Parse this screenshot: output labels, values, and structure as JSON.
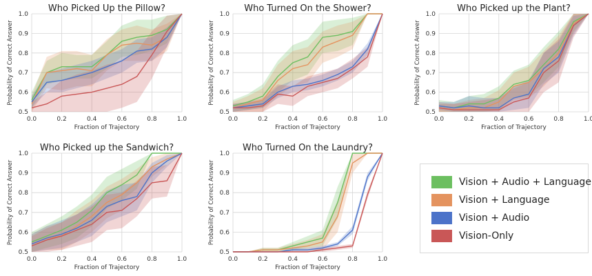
{
  "colors": {
    "Vision + Audio + Language": "#6cbf60",
    "Vision + Language": "#e4935f",
    "Vision + Audio": "#4c73c9",
    "Vision-Only": "#c95757"
  },
  "legend": {
    "items": [
      "Vision + Audio + Language",
      "Vision + Language",
      "Vision + Audio",
      "Vision-Only"
    ]
  },
  "chart_data": [
    {
      "type": "line",
      "title": "Who Picked Up the Pillow?",
      "xlabel": "Fraction of Trajectory",
      "ylabel": "Probability of Correct Answer",
      "xlim": [
        0,
        1
      ],
      "ylim": [
        0.5,
        1.0
      ],
      "xticks": [
        "0.0",
        "0.2",
        "0.4",
        "0.6",
        "0.8",
        "1.0"
      ],
      "yticks": [
        "0.5",
        "0.6",
        "0.7",
        "0.8",
        "0.9",
        "1.0"
      ],
      "x": [
        0,
        0.1,
        0.2,
        0.3,
        0.4,
        0.5,
        0.6,
        0.7,
        0.8,
        0.9,
        1.0
      ],
      "series": [
        {
          "name": "Vision + Audio + Language",
          "values": [
            0.56,
            0.7,
            0.73,
            0.73,
            0.73,
            0.79,
            0.86,
            0.88,
            0.89,
            0.92,
            1.0
          ],
          "band": [
            0.04,
            0.06,
            0.07,
            0.06,
            0.06,
            0.07,
            0.08,
            0.09,
            0.08,
            0.07,
            0.0
          ]
        },
        {
          "name": "Vision + Language",
          "values": [
            0.54,
            0.7,
            0.71,
            0.72,
            0.71,
            0.79,
            0.84,
            0.85,
            0.84,
            0.88,
            1.0
          ],
          "band": [
            0.04,
            0.08,
            0.1,
            0.09,
            0.08,
            0.08,
            0.08,
            0.09,
            0.08,
            0.07,
            0.0
          ]
        },
        {
          "name": "Vision + Audio",
          "values": [
            0.55,
            0.65,
            0.66,
            0.68,
            0.7,
            0.73,
            0.76,
            0.81,
            0.82,
            0.88,
            1.0
          ],
          "band": [
            0.03,
            0.05,
            0.06,
            0.06,
            0.06,
            0.06,
            0.06,
            0.06,
            0.06,
            0.05,
            0.0
          ]
        },
        {
          "name": "Vision-Only",
          "values": [
            0.52,
            0.54,
            0.58,
            0.59,
            0.6,
            0.62,
            0.64,
            0.68,
            0.79,
            0.91,
            1.0
          ],
          "band": [
            0.03,
            0.06,
            0.08,
            0.1,
            0.11,
            0.12,
            0.12,
            0.13,
            0.12,
            0.08,
            0.0
          ]
        }
      ]
    },
    {
      "type": "line",
      "title": "Who Turned On the Shower?",
      "xlabel": "Fraction of Trajectory",
      "ylabel": "Probability of Correct Answer",
      "xlim": [
        0,
        1
      ],
      "ylim": [
        0.5,
        1.0
      ],
      "xticks": [
        "0.0",
        "0.2",
        "0.4",
        "0.6",
        "0.8",
        "1.0"
      ],
      "yticks": [
        "0.5",
        "0.6",
        "0.7",
        "0.8",
        "0.9",
        "1.0"
      ],
      "x": [
        0,
        0.1,
        0.2,
        0.3,
        0.4,
        0.5,
        0.6,
        0.7,
        0.8,
        0.9,
        1.0
      ],
      "series": [
        {
          "name": "Vision + Audio + Language",
          "values": [
            0.53,
            0.55,
            0.58,
            0.68,
            0.75,
            0.78,
            0.88,
            0.89,
            0.91,
            1.0,
            1.0
          ],
          "band": [
            0.03,
            0.04,
            0.06,
            0.08,
            0.09,
            0.09,
            0.08,
            0.08,
            0.07,
            0.0,
            0.0
          ]
        },
        {
          "name": "Vision + Language",
          "values": [
            0.52,
            0.54,
            0.56,
            0.66,
            0.72,
            0.74,
            0.83,
            0.86,
            0.89,
            1.0,
            1.0
          ],
          "band": [
            0.03,
            0.04,
            0.06,
            0.08,
            0.09,
            0.09,
            0.08,
            0.08,
            0.07,
            0.0,
            0.0
          ]
        },
        {
          "name": "Vision + Audio",
          "values": [
            0.52,
            0.53,
            0.54,
            0.6,
            0.63,
            0.64,
            0.66,
            0.69,
            0.73,
            0.82,
            1.0
          ],
          "band": [
            0.02,
            0.02,
            0.02,
            0.03,
            0.03,
            0.03,
            0.03,
            0.03,
            0.03,
            0.03,
            0.0
          ]
        },
        {
          "name": "Vision-Only",
          "values": [
            0.52,
            0.52,
            0.53,
            0.59,
            0.58,
            0.63,
            0.65,
            0.67,
            0.72,
            0.78,
            1.0
          ],
          "band": [
            0.02,
            0.03,
            0.04,
            0.05,
            0.05,
            0.05,
            0.05,
            0.05,
            0.05,
            0.05,
            0.0
          ]
        }
      ]
    },
    {
      "type": "line",
      "title": "Who Picked up the Plant?",
      "xlabel": "Fraction of Trajectory",
      "ylabel": "Probability of Correct Answer",
      "xlim": [
        0,
        1
      ],
      "ylim": [
        0.5,
        1.0
      ],
      "xticks": [
        "0.0",
        "0.2",
        "0.4",
        "0.6",
        "0.8",
        "1.0"
      ],
      "yticks": [
        "0.5",
        "0.6",
        "0.7",
        "0.8",
        "0.9",
        "1.0"
      ],
      "x": [
        0,
        0.1,
        0.2,
        0.3,
        0.4,
        0.5,
        0.6,
        0.7,
        0.8,
        0.9,
        1.0
      ],
      "series": [
        {
          "name": "Vision + Audio + Language",
          "values": [
            0.53,
            0.52,
            0.54,
            0.54,
            0.57,
            0.64,
            0.66,
            0.74,
            0.82,
            0.96,
            1.0
          ],
          "band": [
            0.03,
            0.03,
            0.04,
            0.05,
            0.06,
            0.07,
            0.08,
            0.09,
            0.09,
            0.05,
            0.0
          ]
        },
        {
          "name": "Vision + Language",
          "values": [
            0.52,
            0.51,
            0.52,
            0.52,
            0.55,
            0.63,
            0.65,
            0.72,
            0.8,
            0.95,
            1.0
          ],
          "band": [
            0.03,
            0.03,
            0.04,
            0.05,
            0.06,
            0.07,
            0.08,
            0.09,
            0.09,
            0.05,
            0.0
          ]
        },
        {
          "name": "Vision + Audio",
          "values": [
            0.53,
            0.52,
            0.53,
            0.52,
            0.52,
            0.57,
            0.59,
            0.72,
            0.78,
            0.94,
            1.0
          ],
          "band": [
            0.02,
            0.03,
            0.05,
            0.05,
            0.05,
            0.06,
            0.07,
            0.08,
            0.08,
            0.05,
            0.0
          ]
        },
        {
          "name": "Vision-Only",
          "values": [
            0.52,
            0.51,
            0.51,
            0.51,
            0.51,
            0.55,
            0.57,
            0.7,
            0.76,
            0.94,
            1.0
          ],
          "band": [
            0.02,
            0.03,
            0.04,
            0.05,
            0.06,
            0.07,
            0.08,
            0.1,
            0.11,
            0.06,
            0.0
          ]
        }
      ]
    },
    {
      "type": "line",
      "title": "Who Picked up the Sandwich?",
      "xlabel": "Fraction of Trajectory",
      "ylabel": "Probability of Correct Answer",
      "xlim": [
        0,
        1
      ],
      "ylim": [
        0.5,
        1.0
      ],
      "xticks": [
        "0.0",
        "0.2",
        "0.4",
        "0.6",
        "0.8",
        "1.0"
      ],
      "yticks": [
        "0.5",
        "0.6",
        "0.7",
        "0.8",
        "0.9",
        "1.0"
      ],
      "x": [
        0,
        0.1,
        0.2,
        0.3,
        0.4,
        0.5,
        0.6,
        0.7,
        0.8,
        0.9,
        1.0
      ],
      "series": [
        {
          "name": "Vision + Audio + Language",
          "values": [
            0.55,
            0.58,
            0.61,
            0.65,
            0.71,
            0.8,
            0.84,
            0.89,
            1.0,
            1.0,
            1.0
          ],
          "band": [
            0.05,
            0.06,
            0.07,
            0.08,
            0.08,
            0.08,
            0.08,
            0.07,
            0.0,
            0.0,
            0.0
          ]
        },
        {
          "name": "Vision + Language",
          "values": [
            0.54,
            0.57,
            0.58,
            0.63,
            0.68,
            0.75,
            0.79,
            0.85,
            0.93,
            0.97,
            1.0
          ],
          "band": [
            0.05,
            0.06,
            0.07,
            0.08,
            0.08,
            0.08,
            0.08,
            0.07,
            0.05,
            0.03,
            0.0
          ]
        },
        {
          "name": "Vision + Audio",
          "values": [
            0.54,
            0.57,
            0.59,
            0.62,
            0.66,
            0.73,
            0.76,
            0.78,
            0.9,
            0.96,
            1.0
          ],
          "band": [
            0.05,
            0.06,
            0.07,
            0.07,
            0.08,
            0.08,
            0.08,
            0.07,
            0.05,
            0.03,
            0.0
          ]
        },
        {
          "name": "Vision-Only",
          "values": [
            0.53,
            0.56,
            0.58,
            0.61,
            0.64,
            0.7,
            0.71,
            0.77,
            0.85,
            0.86,
            1.0
          ],
          "band": [
            0.05,
            0.06,
            0.07,
            0.08,
            0.09,
            0.09,
            0.09,
            0.09,
            0.08,
            0.08,
            0.0
          ]
        }
      ]
    },
    {
      "type": "line",
      "title": "Who Turned On the Laundry?",
      "xlabel": "Fraction of Trajectory",
      "ylabel": "Probability of Correct Answer",
      "xlim": [
        0,
        1
      ],
      "ylim": [
        0.5,
        1.0
      ],
      "xticks": [
        "0.0",
        "0.2",
        "0.4",
        "0.6",
        "0.8",
        "1.0"
      ],
      "yticks": [
        "0.5",
        "0.6",
        "0.7",
        "0.8",
        "0.9",
        "1.0"
      ],
      "x": [
        0,
        0.1,
        0.2,
        0.3,
        0.4,
        0.5,
        0.6,
        0.7,
        0.8,
        0.9,
        1.0
      ],
      "series": [
        {
          "name": "Vision + Audio + Language",
          "values": [
            0.5,
            0.5,
            0.51,
            0.51,
            0.53,
            0.55,
            0.57,
            0.75,
            1.0,
            1.0,
            1.0
          ],
          "band": [
            0.0,
            0.0,
            0.01,
            0.01,
            0.02,
            0.03,
            0.04,
            0.08,
            0.0,
            0.0,
            0.0
          ]
        },
        {
          "name": "Vision + Language",
          "values": [
            0.5,
            0.5,
            0.51,
            0.51,
            0.52,
            0.53,
            0.55,
            0.68,
            0.95,
            1.0,
            1.0
          ],
          "band": [
            0.0,
            0.0,
            0.01,
            0.01,
            0.02,
            0.03,
            0.04,
            0.08,
            0.05,
            0.0,
            0.0
          ]
        },
        {
          "name": "Vision + Audio",
          "values": [
            0.5,
            0.5,
            0.5,
            0.5,
            0.51,
            0.51,
            0.52,
            0.54,
            0.61,
            0.88,
            1.0
          ],
          "band": [
            0.0,
            0.0,
            0.0,
            0.0,
            0.01,
            0.01,
            0.01,
            0.01,
            0.02,
            0.02,
            0.0
          ]
        },
        {
          "name": "Vision-Only",
          "values": [
            0.5,
            0.5,
            0.5,
            0.5,
            0.5,
            0.5,
            0.51,
            0.52,
            0.53,
            0.79,
            1.0
          ],
          "band": [
            0.0,
            0.0,
            0.0,
            0.0,
            0.0,
            0.0,
            0.01,
            0.01,
            0.01,
            0.02,
            0.0
          ]
        }
      ]
    }
  ]
}
